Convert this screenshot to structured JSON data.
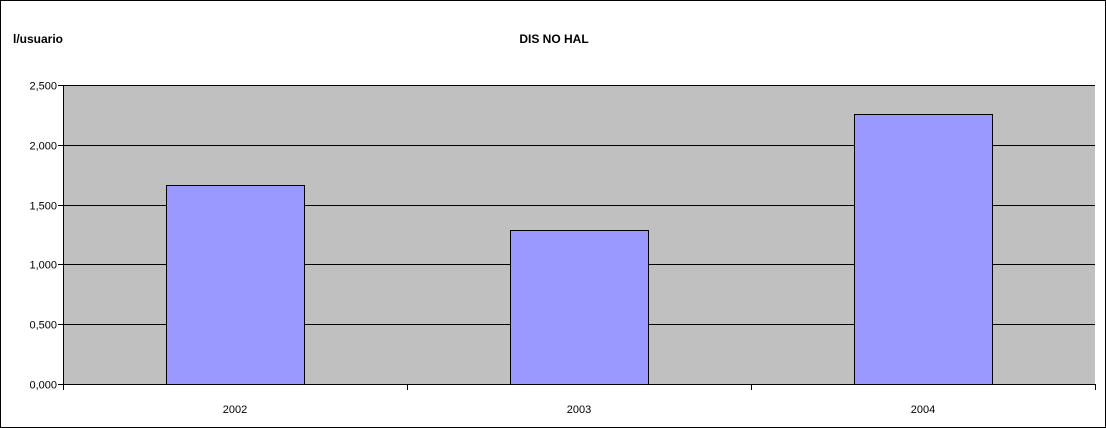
{
  "chart_data": {
    "type": "bar",
    "title": "DIS NO HAL",
    "ylabel": "l/usuario",
    "xlabel": "",
    "categories": [
      "2002",
      "2003",
      "2004"
    ],
    "values": [
      1.665,
      1.29,
      2.255
    ],
    "ylim": [
      0,
      2.5
    ],
    "yticks": [
      0,
      0.5,
      1,
      1.5,
      2,
      2.5
    ],
    "ytick_labels": [
      "0,000",
      "0,500",
      "1,000",
      "1,500",
      "2,000",
      "2,500"
    ],
    "grid": true,
    "legend": "none",
    "colors": {
      "plot_background": "#c0c0c0",
      "bar_fill": "#9999ff",
      "bar_stroke": "#000000",
      "gridline": "#000000"
    }
  }
}
